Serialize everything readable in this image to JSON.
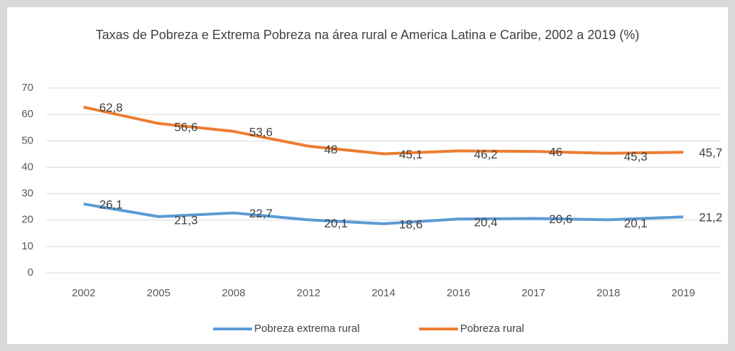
{
  "chart_data": {
    "type": "line",
    "title": "Taxas de Pobreza e Extrema Pobreza na área rural e America Latina e Caribe, 2002 a 2019 (%)",
    "categories": [
      "2002",
      "2005",
      "2008",
      "2012",
      "2014",
      "2016",
      "2017",
      "2018",
      "2019"
    ],
    "series": [
      {
        "name": "Pobreza extrema rural",
        "color": "#5b9bd5",
        "values": [
          26.1,
          21.3,
          22.7,
          20.1,
          18.6,
          20.4,
          20.6,
          20.1,
          21.2
        ],
        "value_labels": [
          "26,1",
          "21,3",
          "22,7",
          "20,1",
          "18,6",
          "20,4",
          "20,6",
          "20,1",
          "21,2"
        ]
      },
      {
        "name": "Pobreza rural",
        "color": "#ed7d31",
        "values": [
          62.8,
          56.6,
          53.6,
          48,
          45.1,
          46.2,
          46,
          45.3,
          45.7
        ],
        "value_labels": [
          "62,8",
          "56,6",
          "53,6",
          "48",
          "45,1",
          "46,2",
          "46",
          "45,3",
          "45,7"
        ]
      }
    ],
    "ylim": [
      0,
      70
    ],
    "yticks": [
      0,
      10,
      20,
      30,
      40,
      50,
      60,
      70
    ],
    "grid": true,
    "legend": "bottom"
  }
}
